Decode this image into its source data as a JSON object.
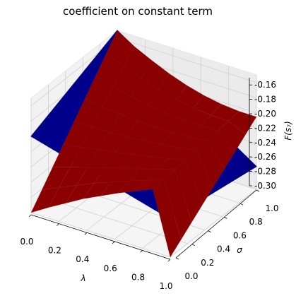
{
  "chart_data": {
    "type": "surface",
    "title": "coefficient on constant term",
    "xlabel": "λ",
    "ylabel": "σ",
    "zlabel": "F(s₇)",
    "xlim": [
      0.0,
      1.0
    ],
    "ylim": [
      0.0,
      1.0
    ],
    "zlim": [
      -0.3,
      -0.15
    ],
    "grid": true,
    "x_ticks": [
      "0.0",
      "0.2",
      "0.4",
      "0.6",
      "0.8",
      "1.0"
    ],
    "y_ticks": [
      "0.0",
      "0.2",
      "0.4",
      "0.6",
      "0.8",
      "1.0"
    ],
    "z_ticks": [
      "-0.30",
      "-0.28",
      "-0.26",
      "-0.24",
      "-0.22",
      "-0.20",
      "-0.18",
      "-0.16"
    ],
    "series": [
      {
        "color": "#00008b",
        "grid_x": [
          0.0,
          1.0
        ],
        "grid_y": [
          0.0,
          1.0
        ],
        "z": [
          [
            -0.2,
            -0.25
          ],
          [
            -0.15,
            -0.27
          ]
        ]
      },
      {
        "color": "#8b0000",
        "grid_x": [
          0.0,
          0.125,
          0.25,
          0.375,
          0.5,
          0.625,
          0.75,
          0.875,
          1.0
        ],
        "grid_y": [
          0.0,
          0.125,
          0.25,
          0.375,
          0.5,
          0.625,
          0.75,
          0.875,
          1.0
        ],
        "edge_values": {
          "sigma_0": [
            -0.3,
            -0.286,
            -0.273,
            -0.26,
            -0.249,
            -0.238,
            -0.228,
            -0.218,
            -0.3
          ],
          "sigma_1": [
            -0.15,
            -0.164,
            -0.175,
            -0.185,
            -0.193,
            -0.199,
            -0.203,
            -0.205,
            -0.205
          ]
        }
      }
    ]
  }
}
